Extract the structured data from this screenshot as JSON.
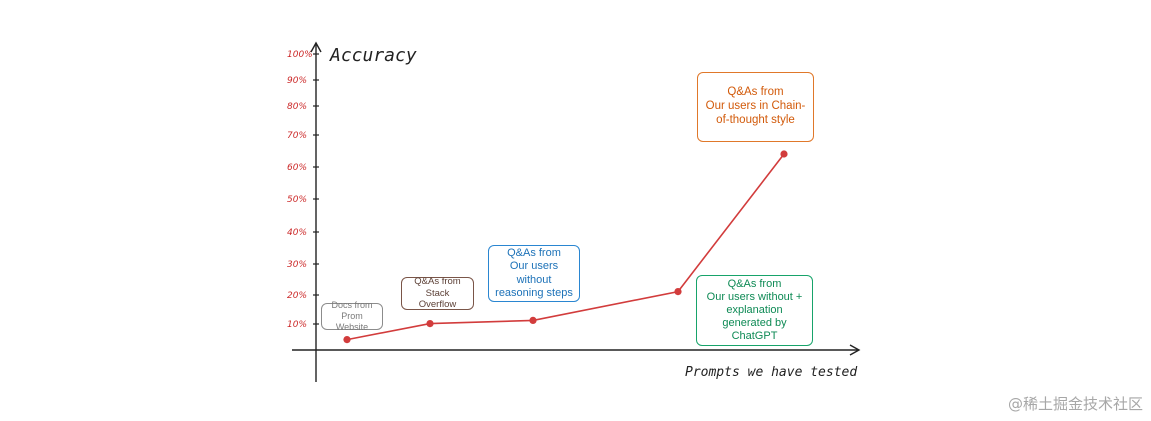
{
  "chart_data": {
    "type": "line",
    "ylabel": "Accuracy",
    "xlabel": "Prompts we have tested",
    "y_ticks": [
      "100%",
      "90%",
      "80%",
      "70%",
      "60%",
      "50%",
      "40%",
      "30%",
      "20%",
      "10%"
    ],
    "ylim": [
      0,
      100
    ],
    "grid": false,
    "x": [
      "Docs from Prom Website",
      "Q&As from Stack Overflow",
      "Q&As from Our users without reasoning steps",
      "Q&As from Our users without + explanation generated by ChatGPT",
      "Q&As from Our users in Chain-of-thought style"
    ],
    "series": [
      {
        "values": [
          7,
          12,
          13,
          22,
          65
        ],
        "color": "#d23c3c"
      }
    ],
    "annotations": [
      {
        "text": "Docs from\nProm Website",
        "color": "#7a7a7a",
        "border": "#8c8c8c"
      },
      {
        "text": "Q&As from\nStack Overflow",
        "color": "#5d4137",
        "border": "#7a5548"
      },
      {
        "text": "Q&As from\nOur users\nwithout\nreasoning steps",
        "color": "#1d72b8",
        "border": "#2a86d1"
      },
      {
        "text": "Q&As from\nOur users without +\nexplanation\ngenerated by\nChatGPT",
        "color": "#0e8a55",
        "border": "#17a36a"
      },
      {
        "text": "Q&As from\nOur users  in Chain-\nof-thought style",
        "color": "#d25a0a",
        "border": "#e0782a"
      }
    ]
  },
  "watermark": "@稀土掘金技术社区"
}
